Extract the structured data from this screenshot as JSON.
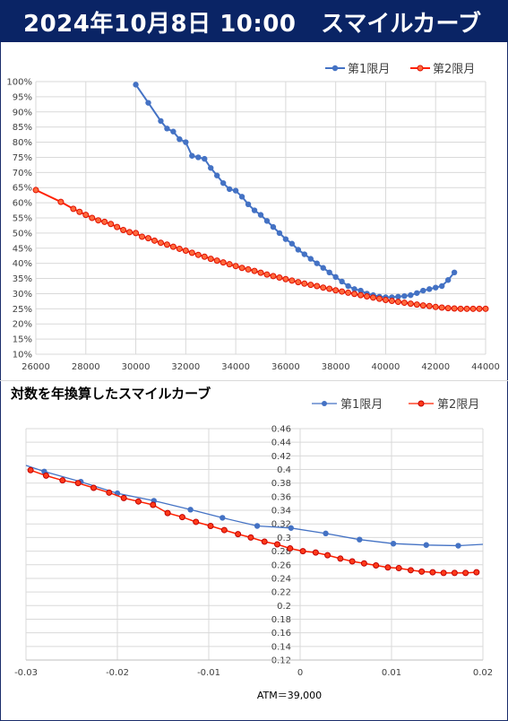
{
  "header": {
    "date": "2024年10月8日 10:00",
    "title": "スマイルカーブ"
  },
  "chart_data": [
    {
      "type": "line",
      "title": "",
      "xlim": [
        26000,
        44000
      ],
      "ylim": [
        10,
        100
      ],
      "x_ticks": [
        "26000",
        "28000",
        "30000",
        "32000",
        "34000",
        "36000",
        "38000",
        "40000",
        "42000",
        "44000"
      ],
      "y_ticks": [
        "10%",
        "15%",
        "20%",
        "25%",
        "30%",
        "35%",
        "40%",
        "45%",
        "50%",
        "55%",
        "60%",
        "65%",
        "70%",
        "75%",
        "80%",
        "85%",
        "90%",
        "95%",
        "100%"
      ],
      "grid": true,
      "legend": "top-right",
      "series": [
        {
          "name": "第1限月",
          "color": "#4472c4",
          "points": [
            [
              30000,
              99
            ],
            [
              30500,
              93
            ],
            [
              31000,
              87
            ],
            [
              31250,
              84.5
            ],
            [
              31500,
              83.5
            ],
            [
              31750,
              81
            ],
            [
              32000,
              80
            ],
            [
              32250,
              75.5
            ],
            [
              32500,
              75
            ],
            [
              32750,
              74.5
            ],
            [
              33000,
              71.5
            ],
            [
              33250,
              69
            ],
            [
              33500,
              66.5
            ],
            [
              33750,
              64.5
            ],
            [
              34000,
              64
            ],
            [
              34250,
              62
            ],
            [
              34500,
              59.5
            ],
            [
              34750,
              57.5
            ],
            [
              35000,
              56
            ],
            [
              35250,
              54
            ],
            [
              35500,
              52
            ],
            [
              35750,
              50
            ],
            [
              36000,
              48
            ],
            [
              36250,
              46.5
            ],
            [
              36500,
              44.5
            ],
            [
              36750,
              43
            ],
            [
              37000,
              41.5
            ],
            [
              37250,
              40
            ],
            [
              37500,
              38.5
            ],
            [
              37750,
              37
            ],
            [
              38000,
              35.5
            ],
            [
              38250,
              34
            ],
            [
              38500,
              32.5
            ],
            [
              38750,
              31.5
            ],
            [
              39000,
              31
            ],
            [
              39250,
              30
            ],
            [
              39500,
              29.5
            ],
            [
              39750,
              29
            ],
            [
              40000,
              28.8
            ],
            [
              40250,
              28.8
            ],
            [
              40500,
              29
            ],
            [
              40750,
              29.2
            ],
            [
              41000,
              29.5
            ],
            [
              41250,
              30.2
            ],
            [
              41500,
              31
            ],
            [
              41750,
              31.5
            ],
            [
              42000,
              32
            ],
            [
              42250,
              32.5
            ],
            [
              42500,
              34.5
            ],
            [
              42750,
              37
            ]
          ]
        },
        {
          "name": "第2限月",
          "color": "#ff2000",
          "points": [
            [
              26000,
              64.2
            ],
            [
              27000,
              60.3
            ],
            [
              27500,
              58
            ],
            [
              27750,
              57
            ],
            [
              28000,
              56
            ],
            [
              28250,
              55
            ],
            [
              28500,
              54.2
            ],
            [
              28750,
              53.7
            ],
            [
              29000,
              53
            ],
            [
              29250,
              52
            ],
            [
              29500,
              51
            ],
            [
              29750,
              50.3
            ],
            [
              30000,
              50
            ],
            [
              30250,
              48.8
            ],
            [
              30500,
              48.3
            ],
            [
              30750,
              47.5
            ],
            [
              31000,
              46.8
            ],
            [
              31250,
              46.2
            ],
            [
              31500,
              45.5
            ],
            [
              31750,
              44.8
            ],
            [
              32000,
              44.2
            ],
            [
              32250,
              43.5
            ],
            [
              32500,
              42.8
            ],
            [
              32750,
              42.2
            ],
            [
              33000,
              41.5
            ],
            [
              33250,
              40.9
            ],
            [
              33500,
              40.3
            ],
            [
              33750,
              39.7
            ],
            [
              34000,
              39.1
            ],
            [
              34250,
              38.5
            ],
            [
              34500,
              38
            ],
            [
              34750,
              37.5
            ],
            [
              35000,
              36.9
            ],
            [
              35250,
              36.3
            ],
            [
              35500,
              35.8
            ],
            [
              35750,
              35.3
            ],
            [
              36000,
              34.8
            ],
            [
              36250,
              34.3
            ],
            [
              36500,
              33.8
            ],
            [
              36750,
              33.3
            ],
            [
              37000,
              32.9
            ],
            [
              37250,
              32.5
            ],
            [
              37500,
              32
            ],
            [
              37750,
              31.6
            ],
            [
              38000,
              31.1
            ],
            [
              38250,
              30.7
            ],
            [
              38500,
              30.3
            ],
            [
              38750,
              29.9
            ],
            [
              39000,
              29.5
            ],
            [
              39250,
              29.1
            ],
            [
              39500,
              28.7
            ],
            [
              39750,
              28.3
            ],
            [
              40000,
              27.9
            ],
            [
              40250,
              27.6
            ],
            [
              40500,
              27.3
            ],
            [
              40750,
              27
            ],
            [
              41000,
              26.7
            ],
            [
              41250,
              26.4
            ],
            [
              41500,
              26.1
            ],
            [
              41750,
              25.9
            ],
            [
              42000,
              25.6
            ],
            [
              42250,
              25.4
            ],
            [
              42500,
              25.2
            ],
            [
              42750,
              25.1
            ],
            [
              43000,
              25
            ],
            [
              43250,
              25
            ],
            [
              43500,
              25
            ],
            [
              43750,
              25
            ],
            [
              44000,
              25
            ]
          ]
        }
      ]
    },
    {
      "type": "line",
      "title": "対数を年換算したスマイルカーブ",
      "xlabel": "ATM＝39,000",
      "xlim": [
        -0.03,
        0.02
      ],
      "ylim": [
        0.12,
        0.46
      ],
      "x_ticks": [
        "-0.03",
        "-0.02",
        "-0.01",
        "0",
        "0.01",
        "0.02"
      ],
      "y_ticks": [
        "0.12",
        "0.14",
        "0.16",
        "0.18",
        "0.2",
        "0.22",
        "0.24",
        "0.26",
        "0.28",
        "0.3",
        "0.32",
        "0.34",
        "0.36",
        "0.38",
        "0.4",
        "0.42",
        "0.44",
        "0.46"
      ],
      "grid": true,
      "legend": "top-right",
      "series": [
        {
          "name": "第1限月",
          "color": "#4472c4",
          "points": [
            [
              -0.03,
              0.406
            ],
            [
              -0.028,
              0.397
            ],
            [
              -0.024,
              0.382
            ],
            [
              -0.02,
              0.365
            ],
            [
              -0.016,
              0.354
            ],
            [
              -0.012,
              0.341
            ],
            [
              -0.0085,
              0.329
            ],
            [
              -0.0047,
              0.317
            ],
            [
              -0.001,
              0.314
            ],
            [
              0.0028,
              0.306
            ],
            [
              0.0065,
              0.297
            ],
            [
              0.0102,
              0.291
            ],
            [
              0.0138,
              0.289
            ],
            [
              0.0173,
              0.288
            ],
            [
              0.02,
              0.29
            ]
          ]
        },
        {
          "name": "第2限月",
          "color": "#ff2000",
          "points": [
            [
              -0.0295,
              0.399
            ],
            [
              -0.0278,
              0.391
            ],
            [
              -0.026,
              0.384
            ],
            [
              -0.0243,
              0.38
            ],
            [
              -0.0226,
              0.373
            ],
            [
              -0.0209,
              0.366
            ],
            [
              -0.0193,
              0.358
            ],
            [
              -0.0177,
              0.353
            ],
            [
              -0.0161,
              0.348
            ],
            [
              -0.0145,
              0.336
            ],
            [
              -0.0129,
              0.33
            ],
            [
              -0.0114,
              0.323
            ],
            [
              -0.0098,
              0.317
            ],
            [
              -0.0083,
              0.311
            ],
            [
              -0.0068,
              0.305
            ],
            [
              -0.0054,
              0.3
            ],
            [
              -0.0039,
              0.294
            ],
            [
              -0.0025,
              0.29
            ],
            [
              -0.0011,
              0.284
            ],
            [
              0.0003,
              0.28
            ],
            [
              0.0017,
              0.278
            ],
            [
              0.003,
              0.274
            ],
            [
              0.0044,
              0.269
            ],
            [
              0.0057,
              0.265
            ],
            [
              0.007,
              0.262
            ],
            [
              0.0083,
              0.259
            ],
            [
              0.0096,
              0.256
            ],
            [
              0.0108,
              0.255
            ],
            [
              0.0121,
              0.252
            ],
            [
              0.0133,
              0.25
            ],
            [
              0.0145,
              0.249
            ],
            [
              0.0157,
              0.248
            ],
            [
              0.0169,
              0.248
            ],
            [
              0.0181,
              0.248
            ],
            [
              0.0193,
              0.249
            ]
          ]
        }
      ]
    }
  ]
}
